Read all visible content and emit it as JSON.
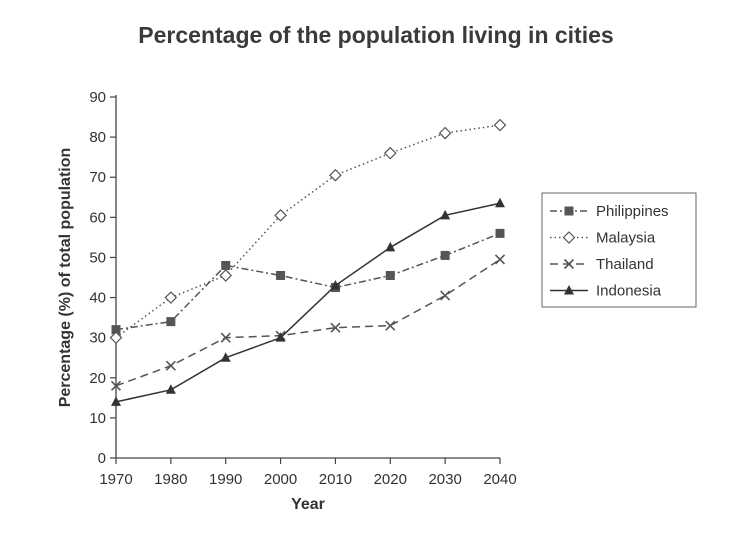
{
  "chart_data": {
    "type": "line",
    "title": "Percentage of the population living in cities",
    "xlabel": "Year",
    "ylabel": "Percentage (%) of total population",
    "x": [
      1970,
      1980,
      1990,
      2000,
      2010,
      2020,
      2030,
      2040
    ],
    "x_tick_labels": [
      "1970",
      "1980",
      "1990",
      "2000",
      "2010",
      "2020",
      "2030",
      "2040"
    ],
    "y_ticks": [
      0,
      10,
      20,
      30,
      40,
      50,
      60,
      70,
      80,
      90
    ],
    "y_tick_labels": [
      "0",
      "10",
      "20",
      "30",
      "40",
      "50",
      "60",
      "70",
      "80",
      "90"
    ],
    "ylim": [
      0,
      90
    ],
    "grid": false,
    "legend_position": "right",
    "series": [
      {
        "name": "Philippines",
        "values": [
          32,
          34,
          48,
          45.5,
          42.5,
          45.5,
          50.5,
          56
        ],
        "marker": "square",
        "dash": "dash-dot",
        "color": "#555555"
      },
      {
        "name": "Malaysia",
        "values": [
          30,
          40,
          45.5,
          60.5,
          70.5,
          76,
          81,
          83
        ],
        "marker": "diamond-open",
        "dash": "dotted",
        "color": "#555555"
      },
      {
        "name": "Thailand",
        "values": [
          18,
          23,
          30,
          30.5,
          32.5,
          33,
          40.5,
          49.5
        ],
        "marker": "x",
        "dash": "dashed",
        "color": "#555555"
      },
      {
        "name": "Indonesia",
        "values": [
          14,
          17,
          25,
          30,
          43,
          52.5,
          60.5,
          63.5
        ],
        "marker": "triangle",
        "dash": "solid",
        "color": "#333333"
      }
    ]
  }
}
